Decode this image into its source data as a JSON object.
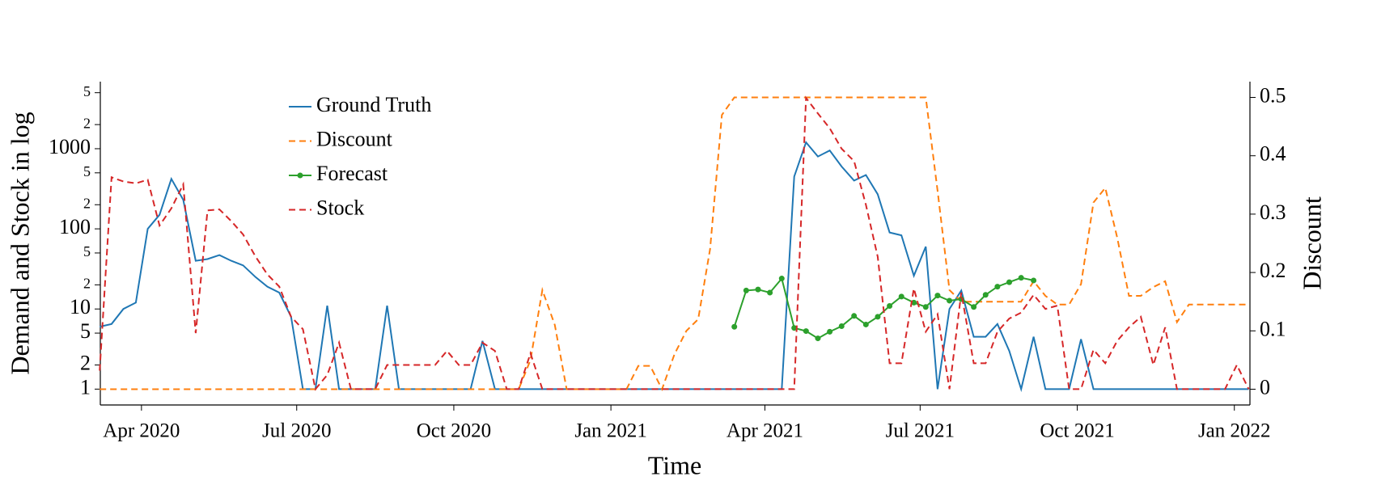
{
  "chart_data": {
    "type": "line",
    "xlabel": "Time",
    "ylabel": "Demand and Stock in log",
    "y2label": "Discount",
    "x": [
      2020.18,
      2020.199,
      2020.218,
      2020.238,
      2020.257,
      2020.276,
      2020.295,
      2020.314,
      2020.334,
      2020.353,
      2020.372,
      2020.391,
      2020.41,
      2020.43,
      2020.449,
      2020.468,
      2020.487,
      2020.506,
      2020.526,
      2020.545,
      2020.564,
      2020.583,
      2020.602,
      2020.622,
      2020.641,
      2020.66,
      2020.679,
      2020.698,
      2020.718,
      2020.737,
      2020.756,
      2020.775,
      2020.794,
      2020.814,
      2020.833,
      2020.852,
      2020.871,
      2020.89,
      2020.91,
      2020.929,
      2020.948,
      2020.967,
      2020.986,
      2021.006,
      2021.025,
      2021.044,
      2021.063,
      2021.082,
      2021.102,
      2021.121,
      2021.14,
      2021.159,
      2021.178,
      2021.198,
      2021.217,
      2021.236,
      2021.255,
      2021.274,
      2021.294,
      2021.313,
      2021.332,
      2021.351,
      2021.37,
      2021.39,
      2021.409,
      2021.428,
      2021.447,
      2021.466,
      2021.486,
      2021.505,
      2021.524,
      2021.543,
      2021.562,
      2021.582,
      2021.601,
      2021.62,
      2021.639,
      2021.658,
      2021.678,
      2021.697,
      2021.716,
      2021.735,
      2021.754,
      2021.774,
      2021.793,
      2021.812,
      2021.831,
      2021.85,
      2021.87,
      2021.889,
      2021.908,
      2021.927,
      2021.946,
      2021.966,
      2021.985,
      2022.004,
      2022.023
    ],
    "series": [
      {
        "name": "Ground Truth",
        "color": "#1f77b4",
        "linestyle": "solid",
        "values": [
          6,
          6.5,
          10,
          12,
          100,
          150,
          420,
          230,
          40,
          42,
          47,
          40,
          35,
          25,
          19,
          16,
          8,
          1,
          1,
          11,
          1,
          1,
          1,
          1,
          11,
          1,
          1,
          1,
          1,
          1,
          1,
          1,
          4,
          1,
          1,
          1,
          1,
          1,
          1,
          1,
          1,
          1,
          1,
          1,
          1,
          1,
          1,
          1,
          1,
          1,
          1,
          1,
          1,
          1,
          1,
          1,
          1,
          1,
          450,
          1200,
          800,
          950,
          600,
          400,
          470,
          270,
          90,
          83,
          26,
          60,
          1,
          10,
          17,
          4.5,
          4.5,
          6.5,
          3,
          1,
          4.5,
          1,
          1,
          1,
          4.2,
          1,
          1,
          1,
          1,
          1,
          1,
          1,
          1,
          1,
          1,
          1,
          1,
          1,
          1
        ]
      },
      {
        "name": "Discount",
        "color": "#ff7f0e",
        "linestyle": "dashed",
        "axis": "y2",
        "values": [
          0,
          0,
          0,
          0,
          0,
          0,
          0,
          0,
          0,
          0,
          0,
          0,
          0,
          0,
          0,
          0,
          0,
          0,
          0,
          0,
          0,
          0,
          0,
          0,
          0,
          0,
          0,
          0,
          0,
          0,
          0,
          0,
          0,
          0,
          0,
          0,
          0.05,
          0.17,
          0.11,
          0,
          0,
          0,
          0,
          0,
          0,
          0.04,
          0.04,
          0,
          0.06,
          0.1,
          0.12,
          0.24,
          0.47,
          0.5,
          0.5,
          0.5,
          0.5,
          0.5,
          0.5,
          0.5,
          0.5,
          0.5,
          0.5,
          0.5,
          0.5,
          0.5,
          0.5,
          0.5,
          0.5,
          0.5,
          0.34,
          0.17,
          0.15,
          0.15,
          0.15,
          0.15,
          0.15,
          0.15,
          0.185,
          0.16,
          0.145,
          0.145,
          0.18,
          0.32,
          0.345,
          0.26,
          0.16,
          0.16,
          0.175,
          0.185,
          0.115,
          0.145,
          0.145,
          0.145,
          0.145,
          0.145,
          0.145
        ]
      },
      {
        "name": "Forecast",
        "color": "#2ca02c",
        "linestyle": "solid",
        "marker": "o",
        "values": [
          null,
          null,
          null,
          null,
          null,
          null,
          null,
          null,
          null,
          null,
          null,
          null,
          null,
          null,
          null,
          null,
          null,
          null,
          null,
          null,
          null,
          null,
          null,
          null,
          null,
          null,
          null,
          null,
          null,
          null,
          null,
          null,
          null,
          null,
          null,
          null,
          null,
          null,
          null,
          null,
          null,
          null,
          null,
          null,
          null,
          null,
          null,
          null,
          null,
          null,
          null,
          null,
          null,
          6,
          17,
          17.5,
          16,
          24,
          5.8,
          5.3,
          4.3,
          5.2,
          6.1,
          8.2,
          6.4,
          8,
          10.9,
          14.3,
          12,
          10.6,
          14.7,
          12.7,
          13.3,
          10.6,
          15,
          19,
          21.6,
          24.5,
          22.7,
          null,
          null,
          null,
          null,
          null,
          null,
          null,
          null,
          null,
          null,
          null,
          null,
          null,
          null,
          null,
          null,
          null,
          null
        ]
      },
      {
        "name": "Stock",
        "color": "#d62728",
        "linestyle": "dashed",
        "values": [
          1.7,
          440,
          390,
          370,
          410,
          110,
          180,
          360,
          5,
          170,
          175,
          125,
          85,
          45,
          27,
          19,
          8,
          5.6,
          1,
          1.5,
          3.8,
          1,
          1,
          1,
          2,
          2,
          2,
          2,
          2,
          3,
          2,
          2,
          3.8,
          3,
          1,
          1,
          2.8,
          1,
          1,
          1,
          1,
          1,
          1,
          1,
          1,
          1,
          1,
          1,
          1,
          1,
          1,
          1,
          1,
          1,
          1,
          1,
          1,
          1,
          1,
          4300,
          2750,
          1800,
          1000,
          700,
          200,
          45,
          2.1,
          2.1,
          18,
          5.2,
          8.6,
          1,
          16,
          2.1,
          2.1,
          5.2,
          7.6,
          9,
          15,
          10,
          11,
          1,
          1,
          3.1,
          2.1,
          4,
          5.9,
          8,
          2,
          5.9,
          1,
          1,
          1,
          1,
          1,
          2,
          1
        ]
      }
    ],
    "xlim": [
      2020.181,
      2022.025
    ],
    "xticks": [
      {
        "value": 2020.247,
        "label": "Apr 2020"
      },
      {
        "value": 2020.496,
        "label": "Jul 2020"
      },
      {
        "value": 2020.748,
        "label": "Oct 2020"
      },
      {
        "value": 2021.0,
        "label": "Jan 2021"
      },
      {
        "value": 2021.247,
        "label": "Apr 2021"
      },
      {
        "value": 2021.496,
        "label": "Jul 2021"
      },
      {
        "value": 2021.748,
        "label": "Oct 2021"
      },
      {
        "value": 2022.0,
        "label": "Jan 2022"
      }
    ],
    "yscale": "log",
    "ylim": [
      0.634,
      6870
    ],
    "yticks": [
      1,
      2,
      5,
      10,
      {
        "value": 20,
        "label": "2"
      },
      {
        "value": 50,
        "label": "5"
      },
      100,
      {
        "value": 200,
        "label": "2"
      },
      {
        "value": 500,
        "label": "5"
      },
      1000,
      {
        "value": 2000,
        "label": "2"
      },
      {
        "value": 5000,
        "label": "5"
      }
    ],
    "y2lim": [
      -0.027,
      0.527
    ],
    "y2ticks": [
      0,
      0.1,
      0.2,
      0.3,
      0.4,
      0.5
    ],
    "grid": false,
    "legend": "upper left"
  }
}
